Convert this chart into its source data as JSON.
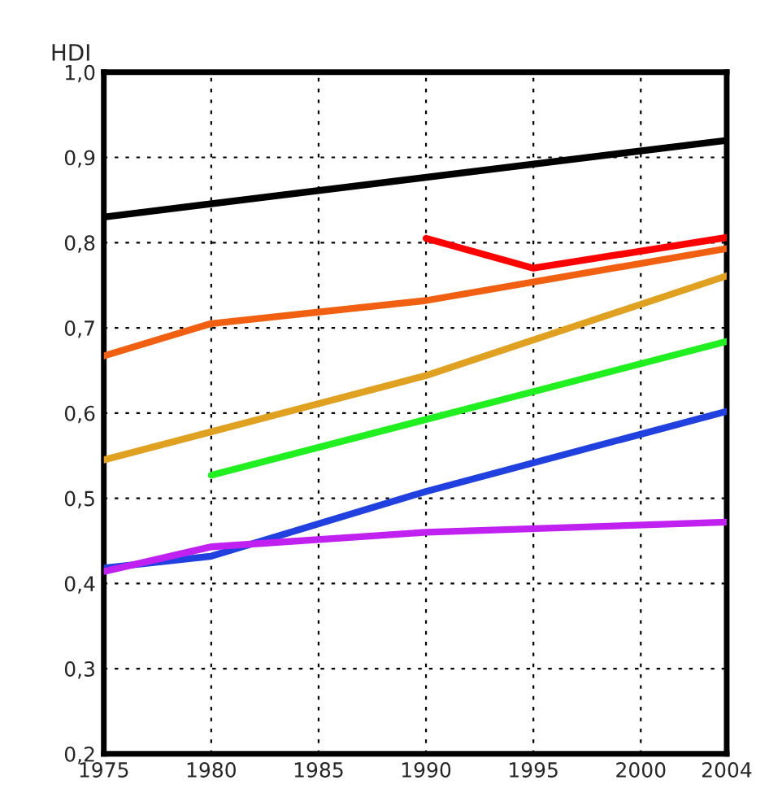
{
  "chart_data": {
    "type": "line",
    "ylabel": "HDI",
    "xlim": [
      1975,
      2004
    ],
    "ylim": [
      0.2,
      1.0
    ],
    "xticks": [
      1975,
      1980,
      1985,
      1990,
      1995,
      2000,
      2004
    ],
    "yticks": [
      {
        "value": 0.2,
        "label": "0,2"
      },
      {
        "value": 0.3,
        "label": "0,3"
      },
      {
        "value": 0.4,
        "label": "0,4"
      },
      {
        "value": 0.5,
        "label": "0,5"
      },
      {
        "value": 0.6,
        "label": "0,6"
      },
      {
        "value": 0.7,
        "label": "0,7"
      },
      {
        "value": 0.8,
        "label": "0,8"
      },
      {
        "value": 0.9,
        "label": "0,9"
      },
      {
        "value": 1.0,
        "label": "1,0"
      }
    ],
    "grid": true,
    "line_style": "solid",
    "marker": "none",
    "series": [
      {
        "color": "#000000",
        "x": [
          1975,
          2004
        ],
        "values": [
          0.83,
          0.92
        ]
      },
      {
        "color": "#ff0000",
        "x": [
          1990,
          1995,
          2004
        ],
        "values": [
          0.805,
          0.77,
          0.806
        ]
      },
      {
        "color": "#f06010",
        "x": [
          1975,
          1980,
          1990,
          2004
        ],
        "values": [
          0.667,
          0.705,
          0.732,
          0.793
        ]
      },
      {
        "color": "#e0a020",
        "x": [
          1975,
          1990,
          2004
        ],
        "values": [
          0.545,
          0.644,
          0.761
        ]
      },
      {
        "color": "#20f020",
        "x": [
          1980,
          2004
        ],
        "values": [
          0.527,
          0.684
        ]
      },
      {
        "color": "#2040e0",
        "x": [
          1975,
          1980,
          1990,
          2004
        ],
        "values": [
          0.418,
          0.432,
          0.508,
          0.602
        ]
      },
      {
        "color": "#c020f0",
        "x": [
          1975,
          1980,
          1990,
          2004
        ],
        "values": [
          0.414,
          0.443,
          0.46,
          0.472
        ]
      }
    ]
  }
}
